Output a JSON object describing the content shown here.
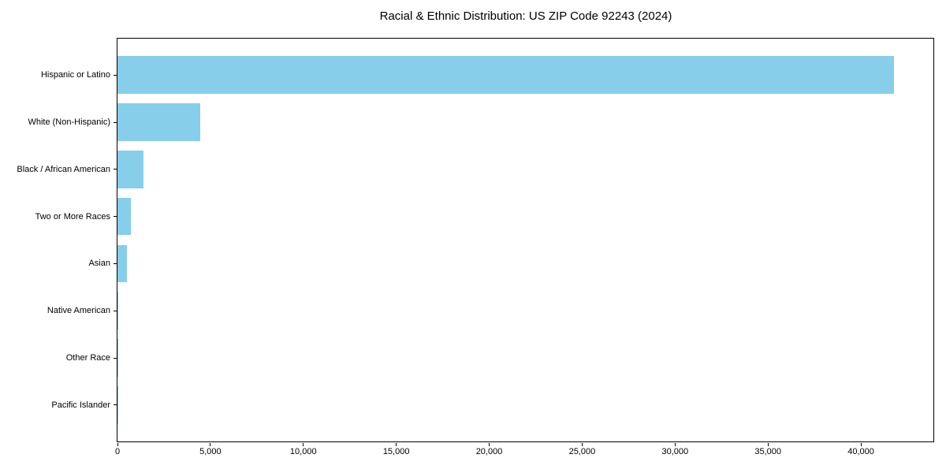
{
  "figure": {
    "background_color": "#FFFFFF",
    "spine_color": "#000000",
    "text_color": "#000000"
  },
  "chart_data": {
    "type": "bar",
    "orientation": "horizontal",
    "title": "Racial & Ethnic Distribution: US ZIP Code 92243 (2024)",
    "categories": [
      "Hispanic or Latino",
      "White (Non-Hispanic)",
      "Black / African American",
      "Two or More Races",
      "Asian",
      "Native American",
      "Other Race",
      "Pacific Islander"
    ],
    "values": [
      41800,
      4440,
      1420,
      700,
      520,
      60,
      50,
      10
    ],
    "xlabel": "",
    "ylabel": "",
    "xlim": [
      0,
      43900
    ],
    "xticks": [
      0,
      5000,
      10000,
      15000,
      20000,
      25000,
      30000,
      35000,
      40000
    ],
    "xtick_labels": [
      "0",
      "5,000",
      "10,000",
      "15,000",
      "20,000",
      "25,000",
      "30,000",
      "35,000",
      "40,000"
    ],
    "bar_color": "#87CEEB",
    "grid": false,
    "legend": null
  }
}
